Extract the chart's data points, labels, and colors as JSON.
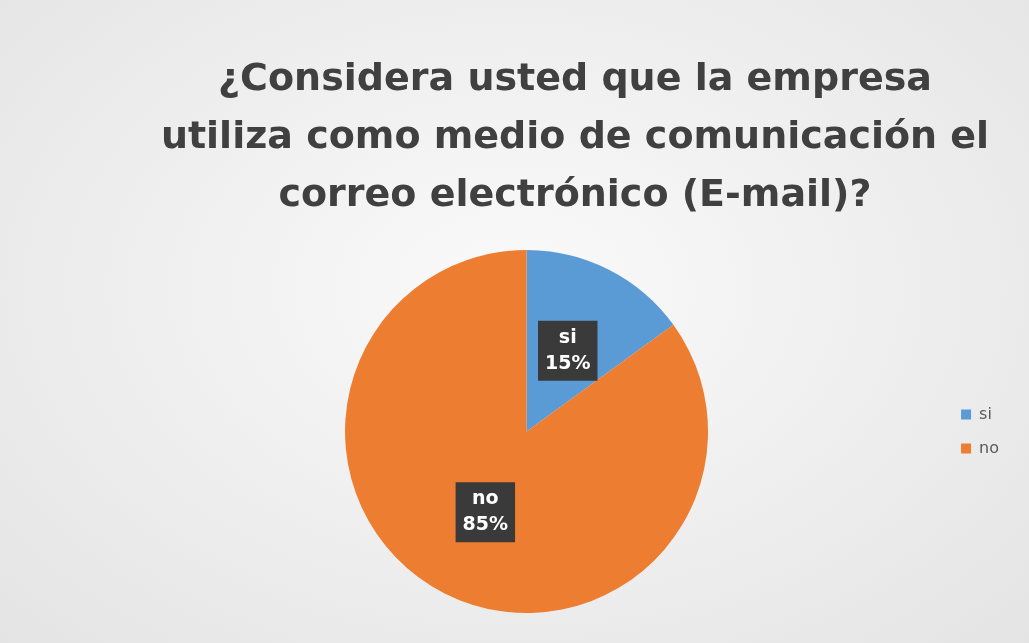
{
  "chart_data": {
    "type": "pie",
    "title": "¿Considera usted que la empresa utiliza como medio de comunicación el correo electrónico (E-mail)?",
    "categories": [
      "si",
      "no"
    ],
    "values": [
      15,
      85
    ],
    "value_labels": [
      "15%",
      "85%"
    ],
    "colors": [
      "#5b9bd5",
      "#ed7d31"
    ],
    "legend": "right"
  }
}
